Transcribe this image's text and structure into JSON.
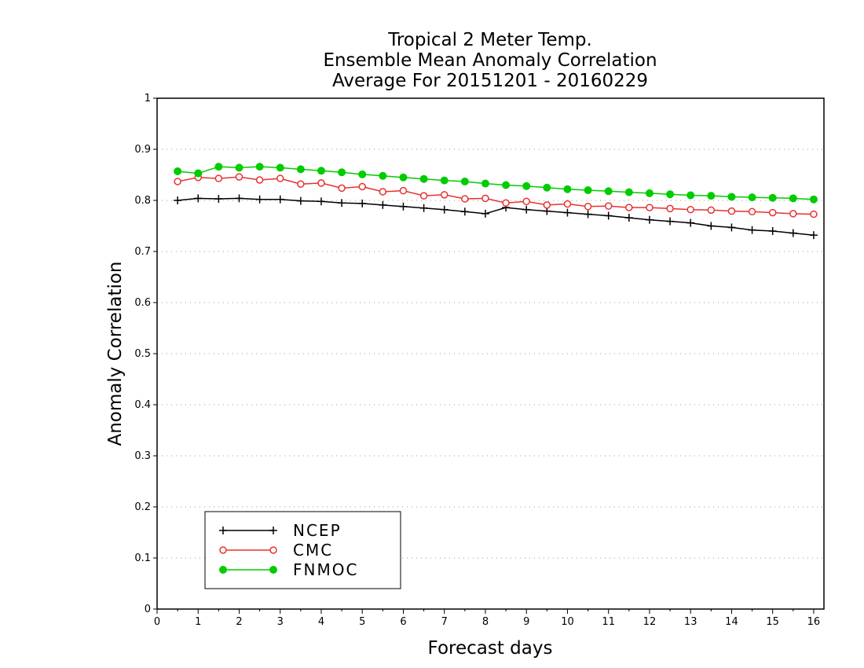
{
  "chart_data": {
    "type": "line",
    "title_lines": [
      "Tropical 2 Meter Temp.",
      "Ensemble Mean Anomaly Correlation",
      "Average For 20151201 - 20160229"
    ],
    "xlabel": "Forecast days",
    "ylabel": "Anomaly Correlation",
    "xlim": [
      0,
      16.25
    ],
    "ylim": [
      0,
      1
    ],
    "x_ticks": [
      0,
      1,
      2,
      3,
      4,
      5,
      6,
      7,
      8,
      9,
      10,
      11,
      12,
      13,
      14,
      15,
      16
    ],
    "y_ticks": [
      0,
      0.1,
      0.2,
      0.3,
      0.4,
      0.5,
      0.6,
      0.7,
      0.8,
      0.9,
      1
    ],
    "y_tick_labels": [
      "0",
      "0.1",
      "0.2",
      "0.3",
      "0.4",
      "0.5",
      "0.6",
      "0.7",
      "0.8",
      "0.9",
      "1"
    ],
    "grid": "dotted horizontal",
    "legend_position": "bottom-left",
    "x": [
      0.5,
      1,
      1.5,
      2,
      2.5,
      3,
      3.5,
      4,
      4.5,
      5,
      5.5,
      6,
      6.5,
      7,
      7.5,
      8,
      8.5,
      9,
      9.5,
      10,
      10.5,
      11,
      11.5,
      12,
      12.5,
      13,
      13.5,
      14,
      14.5,
      15,
      15.5,
      16
    ],
    "series": [
      {
        "name": "NCEP",
        "color": "#000000",
        "marker": "plus",
        "values": [
          0.8,
          0.804,
          0.803,
          0.804,
          0.802,
          0.802,
          0.799,
          0.798,
          0.795,
          0.794,
          0.791,
          0.788,
          0.785,
          0.782,
          0.778,
          0.774,
          0.786,
          0.782,
          0.779,
          0.776,
          0.773,
          0.77,
          0.766,
          0.762,
          0.759,
          0.756,
          0.75,
          0.747,
          0.742,
          0.74,
          0.736,
          0.732
        ]
      },
      {
        "name": "CMC",
        "color": "#e83030",
        "marker": "open-circle",
        "values": [
          0.837,
          0.845,
          0.843,
          0.846,
          0.84,
          0.843,
          0.832,
          0.834,
          0.824,
          0.827,
          0.817,
          0.819,
          0.809,
          0.811,
          0.803,
          0.804,
          0.795,
          0.798,
          0.791,
          0.793,
          0.788,
          0.789,
          0.786,
          0.786,
          0.784,
          0.782,
          0.781,
          0.779,
          0.778,
          0.776,
          0.774,
          0.773
        ]
      },
      {
        "name": "FNMOC",
        "color": "#00cc00",
        "marker": "filled-circle",
        "values": [
          0.857,
          0.853,
          0.866,
          0.864,
          0.866,
          0.864,
          0.861,
          0.858,
          0.855,
          0.851,
          0.848,
          0.845,
          0.842,
          0.839,
          0.837,
          0.833,
          0.83,
          0.828,
          0.825,
          0.822,
          0.82,
          0.818,
          0.816,
          0.814,
          0.812,
          0.81,
          0.809,
          0.807,
          0.806,
          0.805,
          0.804,
          0.802
        ]
      }
    ]
  }
}
